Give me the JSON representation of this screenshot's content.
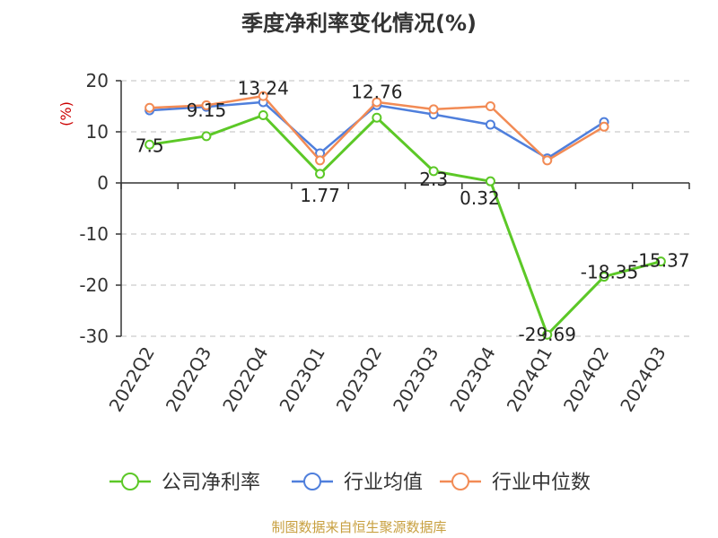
{
  "chart_data": {
    "type": "line",
    "title": "季度净利率变化情况(%)",
    "unit_label": "(%)",
    "categories": [
      "2022Q2",
      "2022Q3",
      "2022Q4",
      "2023Q1",
      "2023Q2",
      "2023Q3",
      "2023Q4",
      "2024Q1",
      "2024Q2",
      "2024Q3"
    ],
    "ylim": [
      -30,
      20
    ],
    "yticks": [
      20,
      10,
      0,
      -10,
      -20,
      -30
    ],
    "grid": true,
    "legend_position": "bottom",
    "series": [
      {
        "name": "公司净利率",
        "color": "#5cc827",
        "values": [
          7.5,
          9.15,
          13.24,
          1.77,
          12.76,
          2.3,
          0.32,
          -29.69,
          -18.35,
          -15.37
        ],
        "labels": [
          "7.5",
          "9.15",
          "13.24",
          "1.77",
          "12.76",
          "2.3",
          "0.32",
          "-29.69",
          "-18.35",
          "-15.37"
        ]
      },
      {
        "name": "行业均值",
        "color": "#4f7fdc",
        "values": [
          14.2,
          14.9,
          15.8,
          5.8,
          15.2,
          13.4,
          11.4,
          4.8,
          11.9,
          null
        ]
      },
      {
        "name": "行业中位数",
        "color": "#f28b55",
        "values": [
          14.7,
          15.2,
          17.0,
          4.4,
          15.8,
          14.4,
          15.0,
          4.4,
          11.0,
          null
        ]
      }
    ]
  },
  "source": "制图数据来自恒生聚源数据库"
}
